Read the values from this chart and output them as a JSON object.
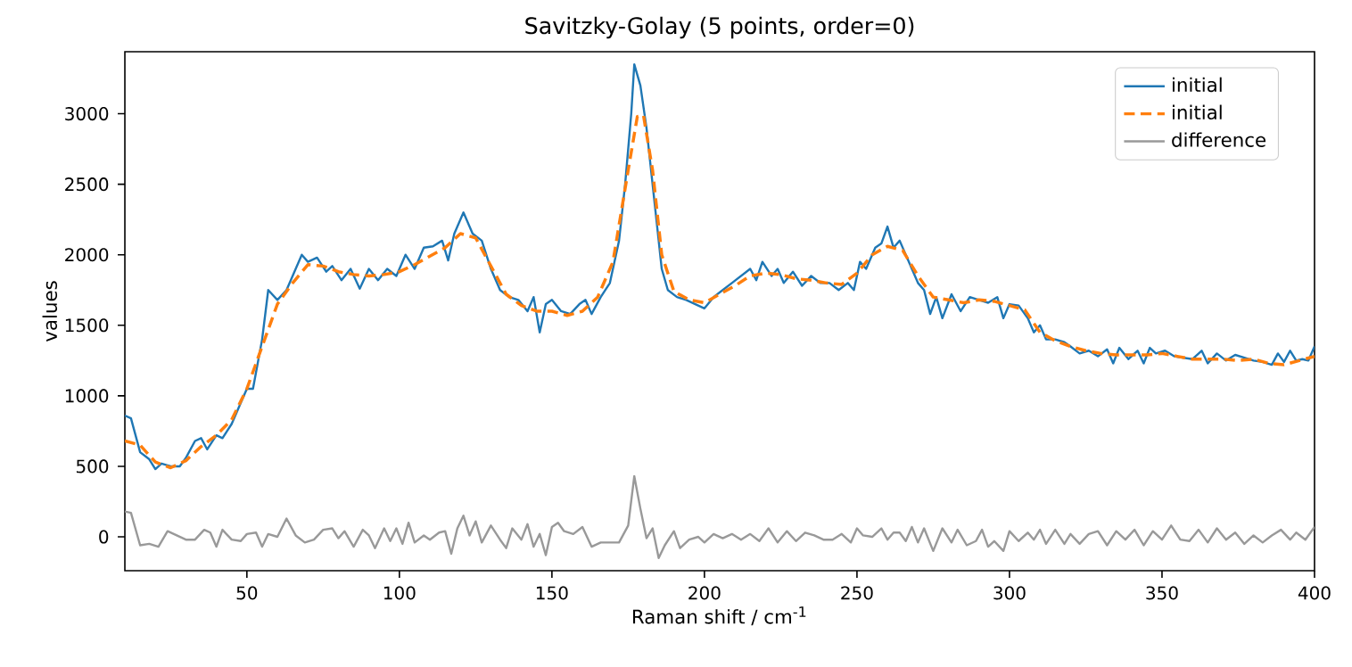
{
  "chart_data": {
    "type": "line",
    "title": "Savitzky-Golay (5 points, order=0)",
    "xlabel": "Raman shift / cm$^{-1}$",
    "ylabel": "values",
    "xlim": [
      10,
      400
    ],
    "ylim": [
      -240,
      3440
    ],
    "xticks": [
      50,
      100,
      150,
      200,
      250,
      300,
      350,
      400
    ],
    "yticks": [
      0,
      500,
      1000,
      1500,
      2000,
      2500,
      3000
    ],
    "legend": "top right",
    "grid": false,
    "marker": "none",
    "series": [
      {
        "name": "initial",
        "color": "#1f77b4",
        "line_style": "solid",
        "x": [
          10,
          12,
          15,
          18,
          20,
          22,
          25,
          28,
          30,
          33,
          35,
          37,
          40,
          42,
          45,
          48,
          50,
          52,
          55,
          57,
          60,
          63,
          66,
          68,
          70,
          73,
          76,
          78,
          81,
          84,
          87,
          90,
          93,
          96,
          99,
          102,
          105,
          108,
          111,
          114,
          116,
          118,
          121,
          124,
          127,
          130,
          133,
          136,
          139,
          142,
          144,
          146,
          148,
          150,
          153,
          156,
          159,
          161,
          163,
          166,
          169,
          172,
          174,
          176,
          177,
          179,
          181,
          184,
          186,
          188,
          191,
          194,
          197,
          200,
          203,
          206,
          209,
          212,
          215,
          217,
          219,
          222,
          224,
          226,
          229,
          232,
          235,
          238,
          241,
          244,
          247,
          249,
          251,
          253,
          256,
          258,
          260,
          262,
          264,
          266,
          268,
          270,
          272,
          274,
          276,
          278,
          281,
          284,
          287,
          290,
          293,
          296,
          298,
          300,
          303,
          306,
          308,
          310,
          312,
          315,
          318,
          320,
          323,
          326,
          329,
          332,
          334,
          336,
          339,
          342,
          344,
          346,
          348,
          351,
          354,
          357,
          360,
          363,
          365,
          368,
          371,
          374,
          377,
          380,
          383,
          386,
          388,
          390,
          392,
          394,
          396,
          398,
          400
        ],
        "values": [
          860,
          840,
          600,
          550,
          480,
          520,
          500,
          500,
          560,
          680,
          700,
          620,
          720,
          700,
          800,
          950,
          1050,
          1050,
          1400,
          1750,
          1680,
          1750,
          1900,
          2000,
          1950,
          1980,
          1880,
          1920,
          1820,
          1900,
          1760,
          1900,
          1820,
          1900,
          1850,
          2000,
          1900,
          2050,
          2060,
          2100,
          1960,
          2150,
          2300,
          2150,
          2100,
          1900,
          1750,
          1700,
          1680,
          1600,
          1700,
          1450,
          1650,
          1680,
          1600,
          1580,
          1650,
          1680,
          1580,
          1700,
          1800,
          2100,
          2500,
          3000,
          3350,
          3200,
          2900,
          2300,
          1900,
          1750,
          1700,
          1680,
          1650,
          1620,
          1700,
          1750,
          1800,
          1850,
          1900,
          1820,
          1950,
          1850,
          1900,
          1800,
          1880,
          1780,
          1850,
          1800,
          1800,
          1750,
          1800,
          1750,
          1950,
          1900,
          2050,
          2080,
          2200,
          2050,
          2100,
          2000,
          1900,
          1800,
          1750,
          1580,
          1700,
          1550,
          1720,
          1600,
          1700,
          1680,
          1660,
          1700,
          1550,
          1650,
          1640,
          1550,
          1450,
          1500,
          1400,
          1400,
          1380,
          1350,
          1300,
          1320,
          1280,
          1330,
          1230,
          1340,
          1260,
          1320,
          1230,
          1340,
          1300,
          1320,
          1280,
          1270,
          1260,
          1320,
          1230,
          1300,
          1250,
          1290,
          1270,
          1250,
          1240,
          1220,
          1300,
          1240,
          1320,
          1250,
          1260,
          1250,
          1350
        ]
      },
      {
        "name": "initial",
        "color": "#ff7f0e",
        "line_style": "dashed",
        "x": [
          10,
          15,
          20,
          25,
          30,
          35,
          40,
          45,
          50,
          55,
          60,
          65,
          70,
          75,
          80,
          85,
          90,
          95,
          100,
          105,
          110,
          115,
          120,
          125,
          130,
          135,
          140,
          145,
          150,
          155,
          160,
          165,
          170,
          175,
          178,
          180,
          183,
          186,
          190,
          195,
          200,
          205,
          210,
          215,
          220,
          225,
          230,
          235,
          240,
          245,
          250,
          255,
          260,
          265,
          270,
          275,
          280,
          285,
          290,
          295,
          300,
          305,
          310,
          315,
          320,
          325,
          330,
          335,
          340,
          345,
          350,
          355,
          360,
          365,
          370,
          375,
          380,
          385,
          390,
          395,
          400
        ],
        "values": [
          680,
          650,
          530,
          490,
          540,
          640,
          720,
          830,
          1050,
          1350,
          1650,
          1800,
          1930,
          1920,
          1880,
          1860,
          1850,
          1860,
          1880,
          1930,
          1990,
          2050,
          2150,
          2120,
          1920,
          1720,
          1640,
          1600,
          1600,
          1570,
          1600,
          1700,
          1950,
          2600,
          2980,
          2990,
          2600,
          2000,
          1740,
          1680,
          1660,
          1720,
          1780,
          1850,
          1870,
          1860,
          1830,
          1820,
          1800,
          1790,
          1870,
          2000,
          2060,
          2030,
          1850,
          1700,
          1680,
          1660,
          1680,
          1670,
          1640,
          1610,
          1450,
          1390,
          1350,
          1320,
          1300,
          1290,
          1290,
          1290,
          1300,
          1280,
          1260,
          1260,
          1260,
          1250,
          1260,
          1230,
          1220,
          1250,
          1280
        ]
      },
      {
        "name": "difference",
        "color": "#999999",
        "line_style": "solid",
        "x": [
          10,
          12,
          15,
          18,
          21,
          24,
          27,
          30,
          33,
          36,
          38,
          40,
          42,
          45,
          48,
          50,
          53,
          55,
          57,
          60,
          63,
          66,
          69,
          72,
          75,
          78,
          80,
          82,
          85,
          88,
          90,
          92,
          95,
          97,
          99,
          101,
          103,
          105,
          108,
          110,
          113,
          115,
          117,
          119,
          121,
          123,
          125,
          127,
          130,
          133,
          135,
          137,
          140,
          142,
          144,
          146,
          148,
          150,
          152,
          154,
          157,
          160,
          163,
          166,
          169,
          172,
          175,
          177,
          179,
          181,
          183,
          185,
          187,
          190,
          192,
          195,
          198,
          200,
          203,
          206,
          209,
          212,
          215,
          218,
          221,
          224,
          227,
          230,
          233,
          236,
          239,
          242,
          245,
          248,
          250,
          252,
          255,
          258,
          260,
          262,
          264,
          266,
          268,
          270,
          272,
          275,
          278,
          281,
          283,
          286,
          289,
          291,
          293,
          295,
          298,
          300,
          303,
          306,
          308,
          310,
          312,
          315,
          318,
          320,
          323,
          326,
          329,
          332,
          335,
          338,
          341,
          344,
          347,
          350,
          353,
          356,
          359,
          362,
          365,
          368,
          371,
          374,
          377,
          380,
          383,
          386,
          389,
          392,
          394,
          397,
          400
        ],
        "values": [
          180,
          170,
          -60,
          -50,
          -70,
          40,
          10,
          -20,
          -20,
          50,
          30,
          -70,
          50,
          -20,
          -30,
          20,
          30,
          -70,
          20,
          0,
          130,
          10,
          -40,
          -20,
          50,
          60,
          -10,
          40,
          -70,
          50,
          10,
          -80,
          60,
          -30,
          60,
          -50,
          100,
          -40,
          10,
          -20,
          30,
          40,
          -120,
          60,
          150,
          10,
          110,
          -40,
          80,
          -20,
          -80,
          60,
          -20,
          90,
          -70,
          20,
          -130,
          70,
          100,
          40,
          20,
          70,
          -70,
          -40,
          -40,
          -40,
          80,
          430,
          200,
          -10,
          60,
          -150,
          -60,
          40,
          -80,
          -20,
          0,
          -40,
          20,
          -10,
          20,
          -20,
          20,
          -30,
          60,
          -40,
          40,
          -30,
          30,
          10,
          -20,
          -20,
          20,
          -40,
          60,
          10,
          0,
          60,
          -20,
          30,
          30,
          -30,
          70,
          -40,
          60,
          -100,
          60,
          -40,
          50,
          -60,
          -30,
          50,
          -70,
          -30,
          -100,
          40,
          -30,
          30,
          -20,
          50,
          -50,
          50,
          -50,
          20,
          -50,
          20,
          40,
          -60,
          40,
          -20,
          50,
          -60,
          40,
          -20,
          80,
          -20,
          -30,
          50,
          -40,
          60,
          -20,
          30,
          -50,
          10,
          -40,
          10,
          50,
          -20,
          30,
          -20,
          70
        ]
      }
    ]
  }
}
